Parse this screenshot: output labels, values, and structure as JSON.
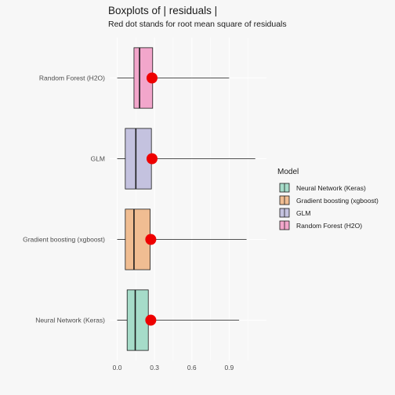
{
  "chart_data": {
    "type": "boxplot",
    "orientation": "horizontal",
    "title": "Boxplots of | residuals |",
    "subtitle": "Red dot stands for root mean square of residuals",
    "xlabel": "",
    "ylabel": "",
    "xlim": [
      -0.06,
      1.2
    ],
    "xticks": [
      0.0,
      0.3,
      0.6,
      0.9
    ],
    "xtick_labels": [
      "0.0",
      "0.3",
      "0.6",
      "0.9"
    ],
    "grid": true,
    "legend_title": "Model",
    "legend_position": "right",
    "categories": [
      "Neural Network (Keras)",
      "Gradient boosting (xgboost)",
      "GLM",
      "Random Forest (H2O)"
    ],
    "series": [
      {
        "name": "Neural Network (Keras)",
        "color": "#a6dcc9",
        "whisker_low": 0.0,
        "q1": 0.08,
        "median": 0.145,
        "q3": 0.25,
        "whisker_high": 0.98,
        "rmse": 0.27
      },
      {
        "name": "Gradient boosting (xgboost)",
        "color": "#f0bd92",
        "whisker_low": 0.0,
        "q1": 0.065,
        "median": 0.135,
        "q3": 0.265,
        "whisker_high": 1.04,
        "rmse": 0.27
      },
      {
        "name": "GLM",
        "color": "#c4c2df",
        "whisker_low": 0.0,
        "q1": 0.065,
        "median": 0.15,
        "q3": 0.275,
        "whisker_high": 1.11,
        "rmse": 0.28
      },
      {
        "name": "Random Forest (H2O)",
        "color": "#f2a6cb",
        "whisker_low": 0.0,
        "q1": 0.135,
        "median": 0.18,
        "q3": 0.285,
        "whisker_high": 0.9,
        "rmse": 0.28
      }
    ],
    "rmse_marker_color": "#ee0000"
  }
}
